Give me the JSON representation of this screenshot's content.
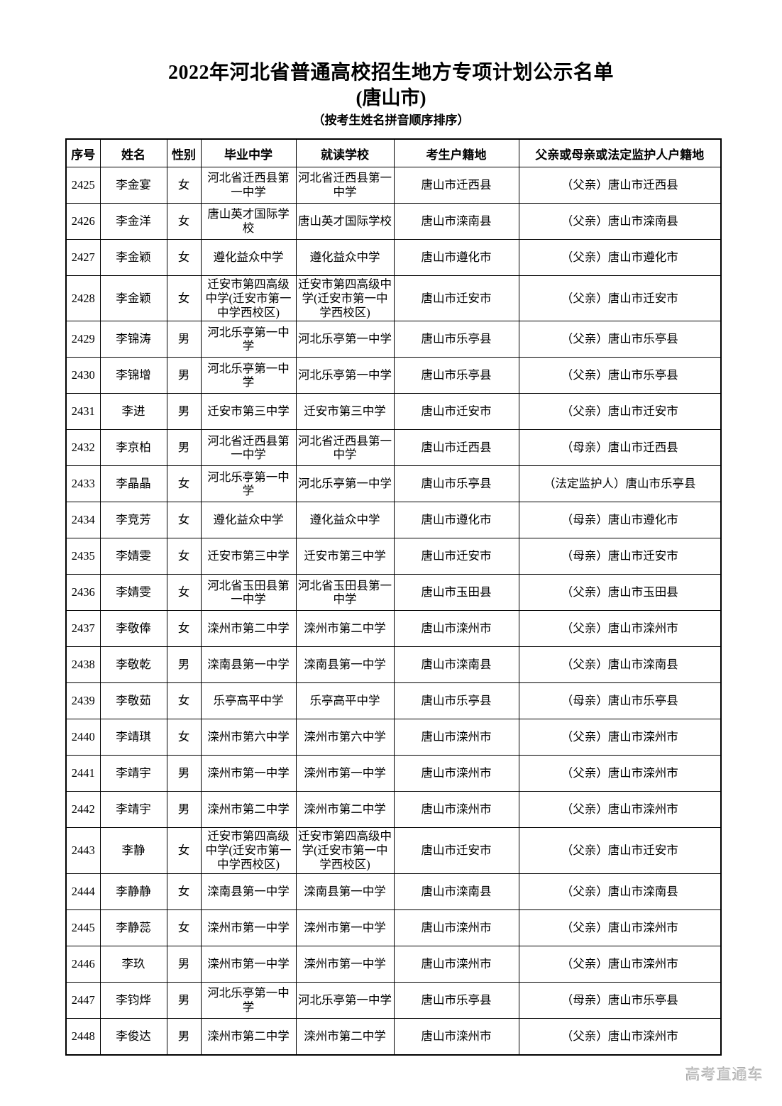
{
  "page": {
    "title": "2022年河北省普通高校招生地方专项计划公示名单",
    "subtitle_city": "(唐山市)",
    "sort_note": "（按考生姓名拼音顺序排序）"
  },
  "table": {
    "columns": [
      "no",
      "name",
      "gender",
      "graduation_school",
      "attending_school",
      "candidate_residence",
      "guardian_residence"
    ],
    "headers": [
      "序号",
      "姓名",
      "性别",
      "毕业中学",
      "就读学校",
      "考生户籍地",
      "父亲或母亲或法定监护人户籍地"
    ],
    "rows": [
      [
        "2425",
        "李金宴",
        "女",
        "河北省迁西县第一中学",
        "河北省迁西县第一中学",
        "唐山市迁西县",
        "（父亲）唐山市迁西县"
      ],
      [
        "2426",
        "李金洋",
        "女",
        "唐山英才国际学校",
        "唐山英才国际学校",
        "唐山市滦南县",
        "（父亲）唐山市滦南县"
      ],
      [
        "2427",
        "李金颖",
        "女",
        "遵化益众中学",
        "遵化益众中学",
        "唐山市遵化市",
        "（父亲）唐山市遵化市"
      ],
      [
        "2428",
        "李金颖",
        "女",
        "迁安市第四高级中学(迁安市第一中学西校区)",
        "迁安市第四高级中学(迁安市第一中学西校区)",
        "唐山市迁安市",
        "（父亲）唐山市迁安市"
      ],
      [
        "2429",
        "李锦涛",
        "男",
        "河北乐亭第一中学",
        "河北乐亭第一中学",
        "唐山市乐亭县",
        "（父亲）唐山市乐亭县"
      ],
      [
        "2430",
        "李锦增",
        "男",
        "河北乐亭第一中学",
        "河北乐亭第一中学",
        "唐山市乐亭县",
        "（父亲）唐山市乐亭县"
      ],
      [
        "2431",
        "李进",
        "男",
        "迁安市第三中学",
        "迁安市第三中学",
        "唐山市迁安市",
        "（父亲）唐山市迁安市"
      ],
      [
        "2432",
        "李京柏",
        "男",
        "河北省迁西县第一中学",
        "河北省迁西县第一中学",
        "唐山市迁西县",
        "（母亲）唐山市迁西县"
      ],
      [
        "2433",
        "李晶晶",
        "女",
        "河北乐亭第一中学",
        "河北乐亭第一中学",
        "唐山市乐亭县",
        "（法定监护人）唐山市乐亭县"
      ],
      [
        "2434",
        "李竞芳",
        "女",
        "遵化益众中学",
        "遵化益众中学",
        "唐山市遵化市",
        "（母亲）唐山市遵化市"
      ],
      [
        "2435",
        "李婧雯",
        "女",
        "迁安市第三中学",
        "迁安市第三中学",
        "唐山市迁安市",
        "（母亲）唐山市迁安市"
      ],
      [
        "2436",
        "李婧雯",
        "女",
        "河北省玉田县第一中学",
        "河北省玉田县第一中学",
        "唐山市玉田县",
        "（父亲）唐山市玉田县"
      ],
      [
        "2437",
        "李敬俸",
        "女",
        "滦州市第二中学",
        "滦州市第二中学",
        "唐山市滦州市",
        "（父亲）唐山市滦州市"
      ],
      [
        "2438",
        "李敬乾",
        "男",
        "滦南县第一中学",
        "滦南县第一中学",
        "唐山市滦南县",
        "（父亲）唐山市滦南县"
      ],
      [
        "2439",
        "李敬茹",
        "女",
        "乐亭高平中学",
        "乐亭高平中学",
        "唐山市乐亭县",
        "（母亲）唐山市乐亭县"
      ],
      [
        "2440",
        "李靖琪",
        "女",
        "滦州市第六中学",
        "滦州市第六中学",
        "唐山市滦州市",
        "（父亲）唐山市滦州市"
      ],
      [
        "2441",
        "李靖宇",
        "男",
        "滦州市第一中学",
        "滦州市第一中学",
        "唐山市滦州市",
        "（父亲）唐山市滦州市"
      ],
      [
        "2442",
        "李靖宇",
        "男",
        "滦州市第二中学",
        "滦州市第二中学",
        "唐山市滦州市",
        "（父亲）唐山市滦州市"
      ],
      [
        "2443",
        "李静",
        "女",
        "迁安市第四高级中学(迁安市第一中学西校区)",
        "迁安市第四高级中学(迁安市第一中学西校区)",
        "唐山市迁安市",
        "（父亲）唐山市迁安市"
      ],
      [
        "2444",
        "李静静",
        "女",
        "滦南县第一中学",
        "滦南县第一中学",
        "唐山市滦南县",
        "（父亲）唐山市滦南县"
      ],
      [
        "2445",
        "李静蕊",
        "女",
        "滦州市第一中学",
        "滦州市第一中学",
        "唐山市滦州市",
        "（父亲）唐山市滦州市"
      ],
      [
        "2446",
        "李玖",
        "男",
        "滦州市第一中学",
        "滦州市第一中学",
        "唐山市滦州市",
        "（父亲）唐山市滦州市"
      ],
      [
        "2447",
        "李钧烨",
        "男",
        "河北乐亭第一中学",
        "河北乐亭第一中学",
        "唐山市乐亭县",
        "（母亲）唐山市乐亭县"
      ],
      [
        "2448",
        "李俊达",
        "男",
        "滦州市第二中学",
        "滦州市第二中学",
        "唐山市滦州市",
        "（父亲）唐山市滦州市"
      ]
    ]
  },
  "watermark": "高考直通车"
}
